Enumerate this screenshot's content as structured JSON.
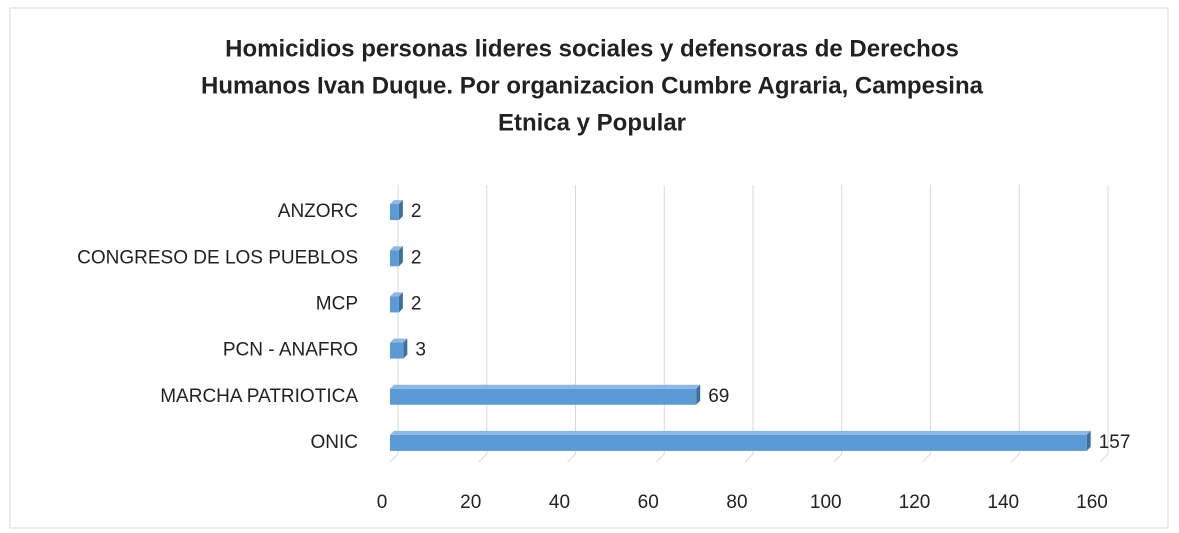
{
  "chart_data": {
    "type": "bar",
    "orientation": "horizontal",
    "title": [
      "Homicidios personas lideres sociales y defensoras de Derechos",
      "Humanos Ivan Duque. Por organizacion Cumbre Agraria, Campesina",
      "Etnica y Popular"
    ],
    "categories": [
      "ANZORC",
      "CONGRESO DE LOS PUEBLOS",
      "MCP",
      "PCN - ANAFRO",
      "MARCHA PATRIOTICA",
      "ONIC"
    ],
    "values": [
      2,
      2,
      2,
      3,
      69,
      157
    ],
    "color": "#5b9bd5",
    "xlim": [
      0,
      160
    ],
    "xticks": [
      0,
      20,
      40,
      60,
      80,
      100,
      120,
      140,
      160
    ],
    "grid": true
  }
}
